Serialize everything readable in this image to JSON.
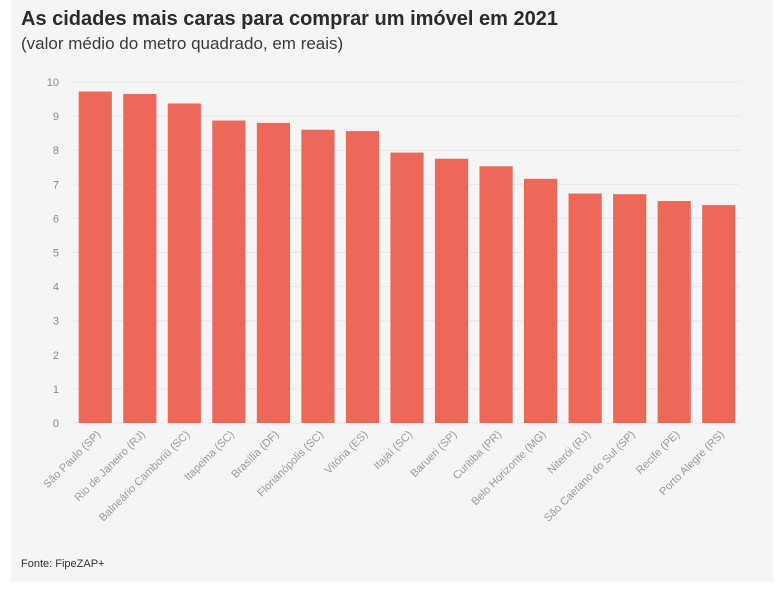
{
  "title": "As cidades mais caras para comprar um imóvel em 2021",
  "subtitle": "(valor médio do metro quadrado, em reais)",
  "source": "Fonte: FipeZAP+",
  "chart_data": {
    "type": "bar",
    "title": "As cidades mais caras para comprar um imóvel em 2021",
    "subtitle": "(valor médio do metro quadrado, em reais)",
    "xlabel": "",
    "ylabel": "",
    "ylim": [
      0,
      10
    ],
    "yticks": [
      0,
      1,
      2,
      3,
      4,
      5,
      6,
      7,
      8,
      9,
      10
    ],
    "grid": true,
    "bar_color": "#ec6859",
    "categories": [
      "São Paulo (SP)",
      "Rio de Janeiro (RJ)",
      "Balneário Camboriú (SC)",
      "Itapema (SC)",
      "Brasília (DF)",
      "Florianópolis (SC)",
      "Vitória (ES)",
      "Itajaí (SC)",
      "Barueri (SP)",
      "Curitiba (PR)",
      "Belo Horizonte (MG)",
      "Niterói (RJ)",
      "São Caetano do Sul (SP)",
      "Recife (PE)",
      "Porto Alegre (RS)"
    ],
    "values": [
      9.72,
      9.65,
      9.37,
      8.87,
      8.8,
      8.6,
      8.56,
      7.93,
      7.75,
      7.53,
      7.16,
      6.73,
      6.71,
      6.51,
      6.39
    ]
  }
}
